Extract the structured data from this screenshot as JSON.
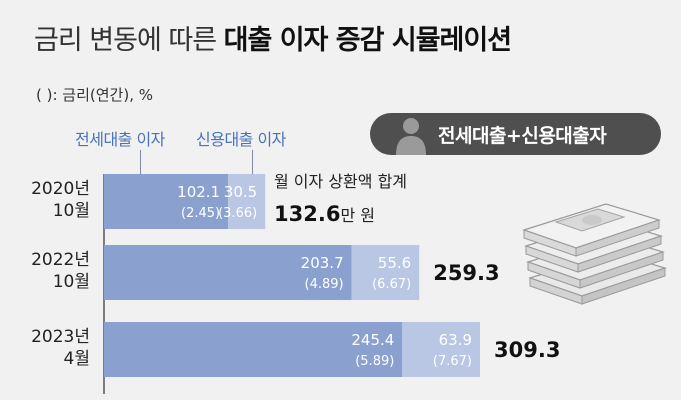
{
  "title": {
    "light": "금리 변동에 따른",
    "bold": "대출 이자 증감 시뮬레이션"
  },
  "unit_note": "( ): 금리(연간), %",
  "legend": {
    "deposit": "전세대출 이자",
    "credit": "신용대출 이자"
  },
  "badge": {
    "icon": "person-icon",
    "text": "전세대출+신용대출자"
  },
  "total_note": "월 이자 상환액 합계",
  "total_unit": "만 원",
  "colors": {
    "deposit": "#8aa1d0",
    "credit": "#b9c7e5",
    "background": "#f1f1f1",
    "badge": "#4f4f4f"
  },
  "chart_data": {
    "type": "bar",
    "orientation": "horizontal",
    "stacked": true,
    "categories": [
      [
        "2020년",
        "10월"
      ],
      [
        "2022년",
        "10월"
      ],
      [
        "2023년",
        "4월"
      ]
    ],
    "series": [
      {
        "name": "전세대출 이자",
        "values": [
          102.1,
          203.7,
          245.4
        ],
        "rates": [
          "(2.45)",
          "(4.89)",
          "(5.89)"
        ]
      },
      {
        "name": "신용대출 이자",
        "values": [
          30.5,
          55.6,
          63.9
        ],
        "rates": [
          "(3.66)",
          "(6.67)",
          "(7.67)"
        ]
      }
    ],
    "totals": [
      "132.6",
      "259.3",
      "309.3"
    ],
    "xlim": [
      0,
      309.3
    ],
    "grid": false,
    "legend_position": "top-left"
  }
}
